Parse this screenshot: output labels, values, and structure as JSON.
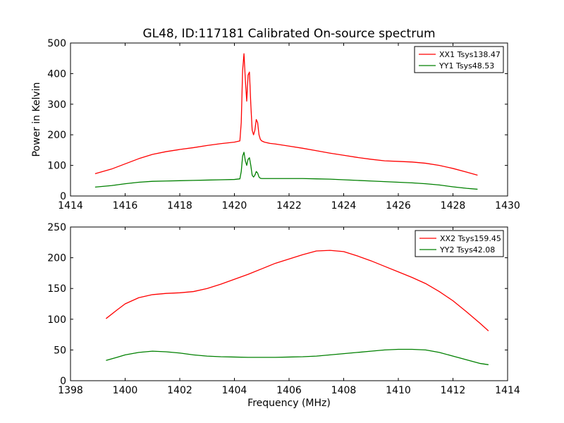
{
  "chart_data": {
    "title": "GL48, ID:117181 Calibrated On-source spectrum",
    "panels": [
      {
        "type": "line",
        "xlim": [
          1414,
          1430
        ],
        "ylim": [
          0,
          500
        ],
        "xticks": [
          "1414",
          "1416",
          "1418",
          "1420",
          "1422",
          "1424",
          "1426",
          "1428",
          "1430"
        ],
        "yticks": [
          "0",
          "100",
          "200",
          "300",
          "400",
          "500"
        ],
        "xlabel": "",
        "ylabel": "Power in Kelvin",
        "legend_position": "top-right",
        "series": [
          {
            "name": "XX1 Tsys138.47",
            "color": "#ff0000",
            "x": [
              1414.9,
              1415.5,
              1416.0,
              1416.5,
              1417.0,
              1417.5,
              1418.0,
              1418.5,
              1419.0,
              1419.5,
              1420.0,
              1420.2,
              1420.25,
              1420.3,
              1420.35,
              1420.4,
              1420.45,
              1420.5,
              1420.55,
              1420.6,
              1420.65,
              1420.7,
              1420.75,
              1420.8,
              1420.85,
              1420.9,
              1420.95,
              1421.0,
              1421.1,
              1421.3,
              1421.5,
              1422.0,
              1422.5,
              1423.0,
              1423.5,
              1424.0,
              1424.5,
              1425.0,
              1425.5,
              1426.0,
              1426.5,
              1427.0,
              1427.5,
              1428.0,
              1428.5,
              1428.9
            ],
            "y": [
              73,
              88,
              105,
              122,
              136,
              145,
              152,
              158,
              165,
              171,
              176,
              180,
              240,
              410,
              465,
              380,
              310,
              395,
              405,
              300,
              215,
              200,
              215,
              250,
              240,
              200,
              185,
              180,
              176,
              172,
              170,
              163,
              156,
              148,
              140,
              133,
              126,
              120,
              115,
              113,
              111,
              107,
              100,
              90,
              78,
              68
            ]
          },
          {
            "name": "YY1 Tsys48.53",
            "color": "#008000",
            "x": [
              1414.9,
              1415.5,
              1416.0,
              1416.5,
              1417.0,
              1417.5,
              1418.0,
              1418.5,
              1419.0,
              1419.5,
              1420.0,
              1420.2,
              1420.25,
              1420.3,
              1420.35,
              1420.4,
              1420.45,
              1420.5,
              1420.55,
              1420.6,
              1420.65,
              1420.7,
              1420.75,
              1420.8,
              1420.85,
              1420.9,
              1420.95,
              1421.0,
              1421.5,
              1422.0,
              1422.5,
              1423.0,
              1423.5,
              1424.0,
              1424.5,
              1425.0,
              1425.5,
              1426.0,
              1426.5,
              1427.0,
              1427.5,
              1428.0,
              1428.5,
              1428.9
            ],
            "y": [
              29,
              34,
              40,
              45,
              48,
              49,
              50,
              51,
              52,
              53,
              54,
              56,
              80,
              130,
              143,
              115,
              100,
              120,
              125,
              100,
              68,
              62,
              68,
              80,
              75,
              62,
              58,
              57,
              57,
              57,
              57,
              56,
              55,
              53,
              51,
              49,
              47,
              45,
              43,
              40,
              36,
              30,
              25,
              22
            ]
          }
        ]
      },
      {
        "type": "line",
        "xlim": [
          1398,
          1414
        ],
        "ylim": [
          0,
          250
        ],
        "xticks": [
          "1398",
          "1400",
          "1402",
          "1404",
          "1406",
          "1408",
          "1410",
          "1412",
          "1414"
        ],
        "yticks": [
          "0",
          "50",
          "100",
          "150",
          "200",
          "250"
        ],
        "xlabel": "Frequency (MHz)",
        "ylabel": "",
        "legend_position": "top-right",
        "series": [
          {
            "name": "XX2 Tsys159.45",
            "color": "#ff0000",
            "x": [
              1399.3,
              1399.7,
              1400.0,
              1400.5,
              1401.0,
              1401.5,
              1402.0,
              1402.5,
              1403.0,
              1403.5,
              1404.0,
              1404.5,
              1405.0,
              1405.5,
              1406.0,
              1406.5,
              1407.0,
              1407.5,
              1408.0,
              1408.5,
              1409.0,
              1409.5,
              1410.0,
              1410.5,
              1411.0,
              1411.5,
              1412.0,
              1412.5,
              1413.0,
              1413.3
            ],
            "y": [
              101,
              115,
              125,
              135,
              140,
              142,
              143,
              145,
              150,
              157,
              165,
              173,
              182,
              191,
              198,
              205,
              211,
              212,
              210,
              203,
              195,
              186,
              177,
              168,
              158,
              145,
              130,
              112,
              93,
              81
            ]
          },
          {
            "name": "YY2 Tsys42.08",
            "color": "#008000",
            "x": [
              1399.3,
              1399.7,
              1400.0,
              1400.5,
              1401.0,
              1401.5,
              1402.0,
              1402.5,
              1403.0,
              1403.5,
              1404.0,
              1404.5,
              1405.0,
              1405.5,
              1406.0,
              1406.5,
              1407.0,
              1407.5,
              1408.0,
              1408.5,
              1409.0,
              1409.5,
              1410.0,
              1410.5,
              1411.0,
              1411.5,
              1412.0,
              1412.5,
              1413.0,
              1413.3
            ],
            "y": [
              33,
              38,
              42,
              46,
              48,
              47,
              45,
              42,
              40,
              39,
              38.5,
              38,
              38,
              38,
              38.5,
              39,
              40,
              42,
              44,
              46,
              48,
              50,
              51,
              51,
              50,
              46,
              40,
              34,
              28,
              26
            ]
          }
        ]
      }
    ]
  }
}
